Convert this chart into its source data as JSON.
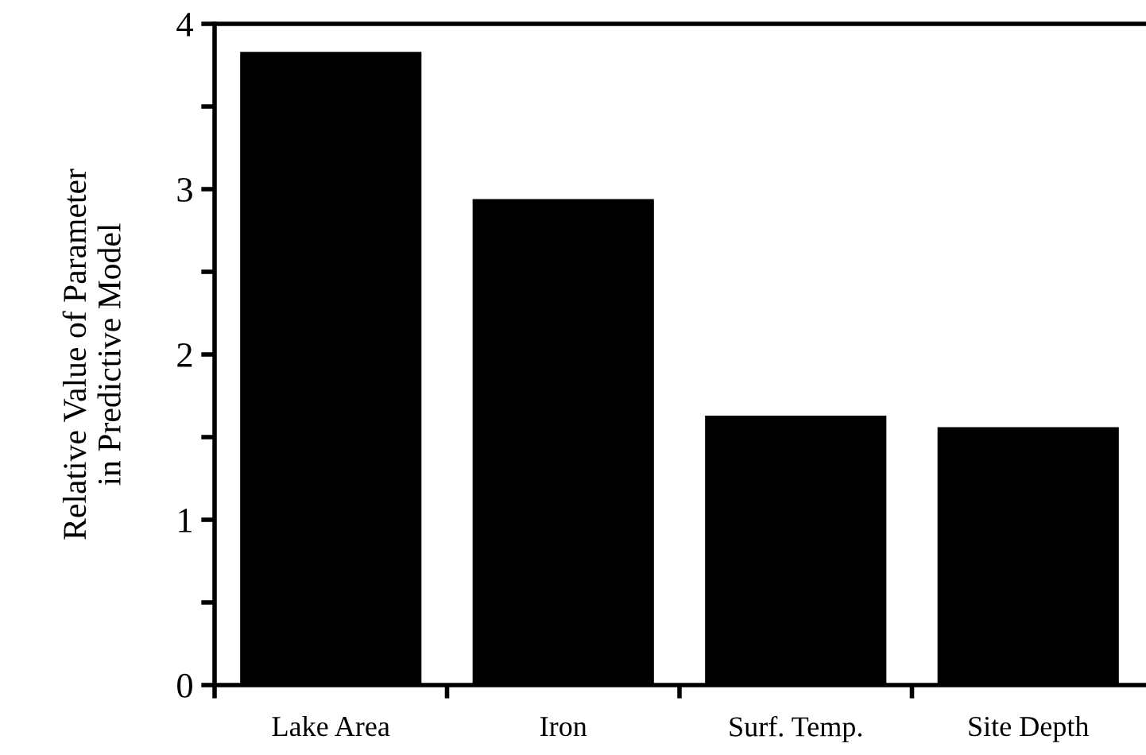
{
  "chart_data": {
    "type": "bar",
    "ylabel": "Relative Value of Parameter\nin Predictive Model",
    "categories": [
      "Lake Area",
      "Iron",
      "Surf. Temp.",
      "Site Depth"
    ],
    "values": [
      3.83,
      2.94,
      1.63,
      1.56
    ],
    "color": "#000000",
    "ylim": [
      0,
      4
    ],
    "yticks": [
      0,
      {
        "value": 0.5,
        "label": null
      },
      1,
      {
        "value": 1.5,
        "label": null
      },
      2,
      {
        "value": 2.5,
        "label": null
      },
      3,
      {
        "value": 3.5,
        "label": null
      },
      4
    ],
    "grid": false
  }
}
